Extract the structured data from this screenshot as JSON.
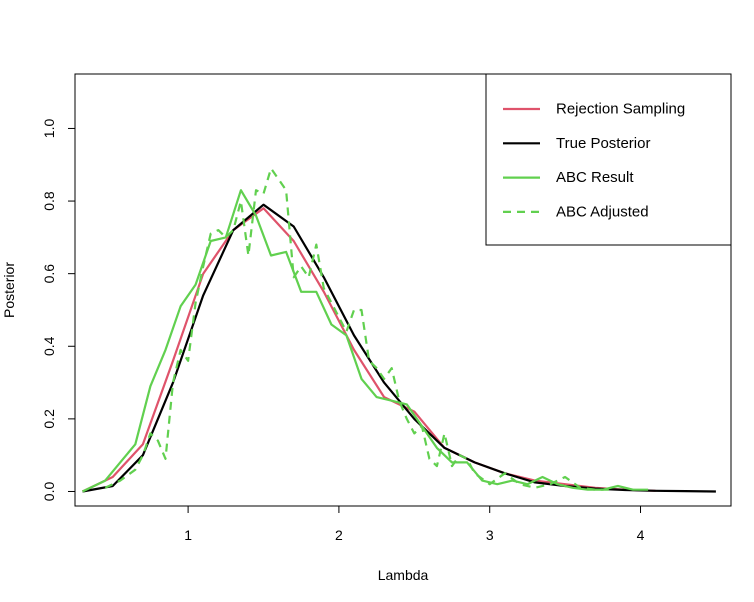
{
  "chart_data": {
    "type": "line",
    "title": "",
    "xlabel": "Lambda",
    "ylabel": "Posterior",
    "xlim": [
      0.25,
      4.6
    ],
    "ylim": [
      -0.04,
      1.15
    ],
    "xticks": [
      1,
      2,
      3,
      4
    ],
    "xtick_labels": [
      "1",
      "2",
      "3",
      "4"
    ],
    "yticks": [
      0.0,
      0.2,
      0.4,
      0.6,
      0.8,
      1.0
    ],
    "ytick_labels": [
      "0.0",
      "0.2",
      "0.4",
      "0.6",
      "0.8",
      "1.0"
    ],
    "grid": false,
    "legend_position": "top-right",
    "series": [
      {
        "name": "Rejection Sampling",
        "color": "#DF536B",
        "style": "solid",
        "x": [
          0.3,
          0.5,
          0.7,
          0.9,
          1.1,
          1.3,
          1.5,
          1.7,
          1.9,
          2.1,
          2.3,
          2.5,
          2.7,
          2.9,
          3.1,
          3.3,
          3.5,
          3.7,
          3.9,
          4.1
        ],
        "y": [
          0.0,
          0.04,
          0.13,
          0.36,
          0.6,
          0.72,
          0.78,
          0.69,
          0.55,
          0.39,
          0.26,
          0.22,
          0.12,
          0.08,
          0.05,
          0.03,
          0.02,
          0.01,
          0.005,
          0.002
        ]
      },
      {
        "name": "True Posterior",
        "color": "#000000",
        "style": "solid",
        "x": [
          0.3,
          0.5,
          0.7,
          0.9,
          1.1,
          1.3,
          1.5,
          1.7,
          1.9,
          2.1,
          2.3,
          2.5,
          2.7,
          2.9,
          3.1,
          3.3,
          3.5,
          3.7,
          3.9,
          4.1,
          4.3,
          4.5
        ],
        "y": [
          0.0,
          0.015,
          0.1,
          0.3,
          0.54,
          0.72,
          0.79,
          0.73,
          0.59,
          0.43,
          0.3,
          0.2,
          0.12,
          0.08,
          0.05,
          0.025,
          0.015,
          0.008,
          0.004,
          0.002,
          0.001,
          0.0
        ]
      },
      {
        "name": "ABC Result",
        "color": "#61D04F",
        "style": "solid",
        "x": [
          0.3,
          0.45,
          0.55,
          0.65,
          0.75,
          0.85,
          0.95,
          1.05,
          1.15,
          1.25,
          1.35,
          1.45,
          1.55,
          1.65,
          1.75,
          1.85,
          1.95,
          2.05,
          2.15,
          2.25,
          2.35,
          2.45,
          2.55,
          2.65,
          2.75,
          2.85,
          2.95,
          3.05,
          3.15,
          3.25,
          3.35,
          3.45,
          3.55,
          3.65,
          3.75,
          3.85,
          3.95,
          4.05
        ],
        "y": [
          0.0,
          0.03,
          0.08,
          0.13,
          0.29,
          0.39,
          0.51,
          0.57,
          0.69,
          0.7,
          0.83,
          0.76,
          0.65,
          0.66,
          0.55,
          0.55,
          0.46,
          0.43,
          0.31,
          0.26,
          0.25,
          0.24,
          0.18,
          0.12,
          0.08,
          0.08,
          0.03,
          0.02,
          0.03,
          0.02,
          0.04,
          0.02,
          0.01,
          0.005,
          0.005,
          0.015,
          0.005,
          0.005
        ]
      },
      {
        "name": "ABC Adjusted",
        "color": "#61D04F",
        "style": "dashed",
        "x": [
          0.45,
          0.55,
          0.65,
          0.7,
          0.75,
          0.8,
          0.85,
          0.9,
          0.95,
          1.0,
          1.05,
          1.1,
          1.15,
          1.2,
          1.25,
          1.3,
          1.35,
          1.4,
          1.45,
          1.5,
          1.55,
          1.6,
          1.65,
          1.7,
          1.75,
          1.8,
          1.85,
          1.9,
          1.95,
          2.0,
          2.05,
          2.1,
          2.15,
          2.2,
          2.25,
          2.3,
          2.35,
          2.4,
          2.45,
          2.5,
          2.55,
          2.6,
          2.65,
          2.7,
          2.75,
          2.8,
          2.85,
          2.9,
          3.0,
          3.1,
          3.2,
          3.3,
          3.4,
          3.5,
          3.6,
          3.7,
          3.8
        ],
        "y": [
          0.01,
          0.03,
          0.06,
          0.1,
          0.16,
          0.14,
          0.09,
          0.3,
          0.39,
          0.36,
          0.52,
          0.62,
          0.71,
          0.72,
          0.7,
          0.72,
          0.8,
          0.65,
          0.83,
          0.82,
          0.89,
          0.86,
          0.83,
          0.59,
          0.62,
          0.59,
          0.68,
          0.56,
          0.52,
          0.48,
          0.44,
          0.5,
          0.5,
          0.36,
          0.34,
          0.31,
          0.34,
          0.25,
          0.2,
          0.16,
          0.18,
          0.09,
          0.07,
          0.16,
          0.07,
          0.1,
          0.09,
          0.05,
          0.02,
          0.05,
          0.02,
          0.01,
          0.02,
          0.04,
          0.01,
          0.005,
          0.005
        ]
      }
    ]
  }
}
